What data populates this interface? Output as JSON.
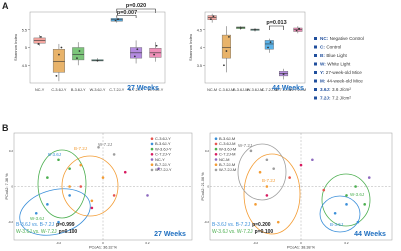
{
  "panel_labels": [
    "A",
    "B"
  ],
  "legend": [
    {
      "key": "NC:",
      "text": "Negative Control"
    },
    {
      "key": "C:",
      "text": "Control"
    },
    {
      "key": "B:",
      "text": "Blue Light"
    },
    {
      "key": "W:",
      "text": "White Light"
    },
    {
      "key": "Y:",
      "text": "27-week-old Mice"
    },
    {
      "key": "M:",
      "text": "44-week-old Mice"
    },
    {
      "key": "3.6J:",
      "text": "3.6 J/cm²"
    },
    {
      "key": "7.2J:",
      "text": "7.2 J/cm²"
    }
  ],
  "chart_data": [
    {
      "type": "box",
      "ylabel": "Shannon Index",
      "period": "27 Weeks",
      "annotations": [
        "p=0.020",
        "p=0.007"
      ],
      "categories": [
        "NC-Y",
        "C-3.6J-Y",
        "B-3.6J-Y",
        "W-3.6J-Y",
        "C-7.2J-Y",
        "B-7.2J-Y",
        "W-7.2J-Y"
      ],
      "colors": [
        "#f4a6a0",
        "#e8b36a",
        "#7cc57a",
        "#6fc8b8",
        "#5bb2e8",
        "#b48be0",
        "#f08fb8"
      ],
      "ylim": [
        4.0,
        6.0
      ],
      "yticks": [
        4.5,
        5,
        5.5
      ],
      "boxes": [
        {
          "min": 5.05,
          "q1": 5.12,
          "median": 5.2,
          "q3": 5.27,
          "max": 5.35,
          "points": [
            5.1,
            5.3
          ]
        },
        {
          "min": 4.05,
          "q1": 4.3,
          "median": 4.6,
          "q3": 4.95,
          "max": 5.1,
          "points": [
            4.2,
            4.8,
            5.0
          ]
        },
        {
          "min": 4.5,
          "q1": 4.65,
          "median": 4.8,
          "q3": 5.0,
          "max": 5.15,
          "points": [
            4.7,
            4.9
          ]
        },
        {
          "min": 4.6,
          "q1": 4.62,
          "median": 4.64,
          "q3": 4.66,
          "max": 4.7,
          "points": [
            4.63
          ]
        },
        {
          "min": 5.7,
          "q1": 5.74,
          "median": 5.78,
          "q3": 5.82,
          "max": 5.86,
          "points": [
            5.76,
            5.8
          ]
        },
        {
          "min": 4.55,
          "q1": 4.7,
          "median": 4.85,
          "q3": 5.0,
          "max": 5.2,
          "points": [
            4.75,
            4.95
          ]
        },
        {
          "min": 4.6,
          "q1": 4.72,
          "median": 4.85,
          "q3": 4.98,
          "max": 5.15,
          "points": [
            4.8,
            5.05
          ]
        }
      ]
    },
    {
      "type": "box",
      "ylabel": "Shannon Index",
      "period": "44 Weeks",
      "annotations": [
        "p=0.013"
      ],
      "categories": [
        "NC-M",
        "C-3.6J-M",
        "B-3.6J-M",
        "W-3.6J-M",
        "C-7.2J-M",
        "B-7.2J-M",
        "W-7.2J-M"
      ],
      "colors": [
        "#f4a6a0",
        "#e8b36a",
        "#7cc57a",
        "#6fc8b8",
        "#5bb2e8",
        "#b48be0",
        "#f08fb8"
      ],
      "ylim": [
        3.0,
        5.0
      ],
      "yticks": [
        3.5,
        4,
        4.5
      ],
      "boxes": [
        {
          "min": 4.7,
          "q1": 4.78,
          "median": 4.85,
          "q3": 4.9,
          "max": 4.95,
          "points": [
            4.8,
            4.88
          ]
        },
        {
          "min": 3.3,
          "q1": 3.7,
          "median": 4.0,
          "q3": 4.35,
          "max": 4.6,
          "points": [
            3.5,
            3.9,
            4.3
          ]
        },
        {
          "min": 4.5,
          "q1": 4.53,
          "median": 4.56,
          "q3": 4.58,
          "max": 4.6,
          "points": [
            4.55
          ]
        },
        {
          "min": 4.45,
          "q1": 4.48,
          "median": 4.5,
          "q3": 4.52,
          "max": 4.55,
          "points": [
            4.5
          ]
        },
        {
          "min": 3.85,
          "q1": 3.95,
          "median": 4.1,
          "q3": 4.2,
          "max": 4.25,
          "points": [
            4.0,
            4.15
          ]
        },
        {
          "min": 3.1,
          "q1": 3.2,
          "median": 3.27,
          "q3": 3.33,
          "max": 3.4,
          "points": [
            3.25
          ]
        },
        {
          "min": 4.4,
          "q1": 4.45,
          "median": 4.5,
          "q3": 4.55,
          "max": 4.6,
          "points": [
            4.48,
            4.53
          ]
        }
      ]
    },
    {
      "type": "scatter",
      "xlabel": "PCoA1: 36.32 %",
      "ylabel": "PCoA2: 7.36 %",
      "period": "27 Weeks",
      "xlim": [
        -0.4,
        0.4
      ],
      "ylim": [
        -0.3,
        0.3
      ],
      "xticks": [
        -0.2,
        0,
        0.2
      ],
      "yticks": [
        -0.2,
        0,
        0.2
      ],
      "group_labels": [
        "B-3.6J",
        "B-7.2J",
        "W-7.2J",
        "W-3.6J"
      ],
      "comparisons": [
        {
          "groups": "B-3.6J vs. B-7.2J",
          "p": "p=0.999"
        },
        {
          "groups": "W-3.6J vs. W-7.2J",
          "p": "p=0.100"
        }
      ],
      "series": [
        {
          "name": "C-3.6J-Y",
          "color": "#e6554f",
          "x": [
            -0.1,
            0.05
          ],
          "y": [
            0.0,
            -0.05
          ]
        },
        {
          "name": "B-3.6J-Y",
          "color": "#3b8fd9",
          "x": [
            -0.3,
            -0.2,
            -0.15,
            -0.25
          ],
          "y": [
            -0.15,
            -0.2,
            -0.05,
            -0.1
          ]
        },
        {
          "name": "W-3.6J-Y",
          "color": "#4caf50",
          "x": [
            -0.25,
            -0.15,
            -0.2
          ],
          "y": [
            0.05,
            0.1,
            0.15
          ]
        },
        {
          "name": "C-7.2J-Y",
          "color": "#d81b60",
          "x": [
            0.1,
            -0.05
          ],
          "y": [
            0.08,
            -0.12
          ]
        },
        {
          "name": "NC-Y",
          "color": "#8e6bbf",
          "x": [
            0.2,
            0.25
          ],
          "y": [
            -0.05,
            0.1
          ]
        },
        {
          "name": "B-7.2J-Y",
          "color": "#f39c34",
          "x": [
            -0.1,
            0.0,
            -0.05,
            -0.15
          ],
          "y": [
            0.12,
            0.05,
            -0.08,
            0.0
          ]
        },
        {
          "name": "W-7.2J-Y",
          "color": "#9e9e9e",
          "x": [
            -0.02,
            0.05
          ],
          "y": [
            0.22,
            0.18
          ]
        }
      ]
    },
    {
      "type": "scatter",
      "xlabel": "PCoA1: 38.38 %",
      "ylabel": "PCoA2: 21.06 %",
      "period": "44 Weeks",
      "xlim": [
        -0.4,
        0.4
      ],
      "ylim": [
        -0.3,
        0.3
      ],
      "xticks": [
        -0.2,
        0,
        0.2
      ],
      "yticks": [
        -0.2,
        0,
        0.2
      ],
      "group_labels": [
        "W-7.2J",
        "B-7.2J",
        "W-3.6J",
        "B-3.6J"
      ],
      "comparisons": [
        {
          "groups": "B-3.6J vs. B-7.2J",
          "p": "p=0.200"
        },
        {
          "groups": "W-3.6J vs. W-7.2J",
          "p": "p=0.100"
        }
      ],
      "series": [
        {
          "name": "B-3.6J-M",
          "color": "#3b8fd9",
          "x": [
            0.15,
            0.2,
            0.25
          ],
          "y": [
            -0.15,
            -0.1,
            -0.2
          ]
        },
        {
          "name": "C-3.6J-M",
          "color": "#e6554f",
          "x": [
            -0.05,
            0.1
          ],
          "y": [
            0.05,
            -0.02
          ]
        },
        {
          "name": "W-3.6J-M",
          "color": "#4caf50",
          "x": [
            0.2,
            0.28,
            0.24
          ],
          "y": [
            -0.05,
            -0.1,
            0.0
          ]
        },
        {
          "name": "C-7.2J-M",
          "color": "#d81b60",
          "x": [
            0.0,
            -0.15
          ],
          "y": [
            0.12,
            -0.05
          ]
        },
        {
          "name": "NC-M",
          "color": "#8e6bbf",
          "x": [
            0.3,
            0.05
          ],
          "y": [
            0.05,
            0.15
          ]
        },
        {
          "name": "B-7.2J-M",
          "color": "#f39c34",
          "x": [
            -0.2,
            -0.15,
            -0.1,
            -0.18
          ],
          "y": [
            -0.1,
            0.0,
            -0.2,
            0.08
          ]
        },
        {
          "name": "W-7.2J-M",
          "color": "#9e9e9e",
          "x": [
            -0.22,
            -0.15,
            -0.12
          ],
          "y": [
            0.2,
            0.15,
            0.1
          ]
        }
      ]
    }
  ]
}
